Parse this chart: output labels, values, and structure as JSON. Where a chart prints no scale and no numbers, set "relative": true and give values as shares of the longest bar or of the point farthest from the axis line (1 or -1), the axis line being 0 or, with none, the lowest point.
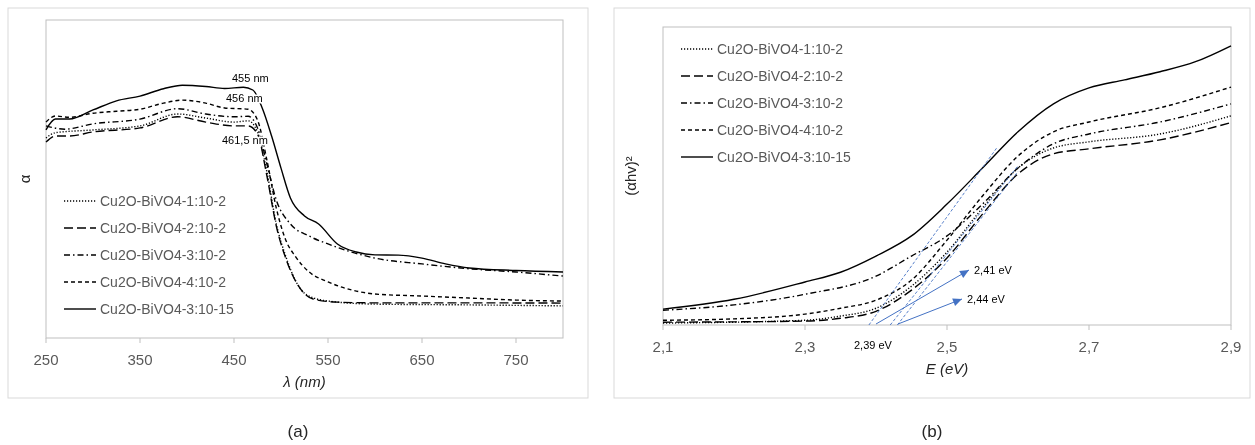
{
  "chart_data": [
    {
      "type": "line",
      "relative": true,
      "xlabel": "λ (nm)",
      "ylabel": "α",
      "xlim": [
        250,
        800
      ],
      "xticks": [
        250,
        350,
        450,
        550,
        650,
        750
      ],
      "legend": "bottom left",
      "grid": false,
      "annotations": [
        "455 nm",
        "456 nm",
        "461,5 nm",
        "(a)"
      ],
      "series": [
        {
          "name": "Cu2O-BiVO4-1:10-2",
          "color": "#000000",
          "line_style": "dotted",
          "x": [
            250,
            260,
            300,
            350,
            390,
            420,
            450,
            465,
            475,
            485,
            495,
            505,
            520,
            535,
            560,
            600,
            700,
            800
          ],
          "values": [
            0.791,
            0.812,
            0.823,
            0.839,
            0.886,
            0.87,
            0.854,
            0.859,
            0.815,
            0.657,
            0.451,
            0.324,
            0.198,
            0.158,
            0.142,
            0.134,
            0.131,
            0.127
          ]
        },
        {
          "name": "Cu2O-BiVO4-2:10-2",
          "color": "#000000",
          "line_style": "longdash",
          "x": [
            250,
            260,
            275,
            300,
            350,
            390,
            420,
            450,
            465,
            475,
            485,
            495,
            505,
            520,
            535,
            560,
            600,
            700,
            800
          ],
          "values": [
            0.775,
            0.799,
            0.799,
            0.815,
            0.831,
            0.875,
            0.854,
            0.839,
            0.839,
            0.807,
            0.641,
            0.443,
            0.316,
            0.198,
            0.153,
            0.142,
            0.139,
            0.139,
            0.138
          ]
        },
        {
          "name": "Cu2O-BiVO4-3:10-2",
          "color": "#000000",
          "line_style": "dashdot",
          "x": [
            250,
            270,
            300,
            350,
            390,
            420,
            450,
            465,
            475,
            485,
            495,
            510,
            530,
            550,
            575,
            600,
            650,
            700,
            750,
            800
          ],
          "values": [
            0.839,
            0.826,
            0.847,
            0.866,
            0.907,
            0.886,
            0.875,
            0.877,
            0.831,
            0.688,
            0.546,
            0.451,
            0.403,
            0.372,
            0.34,
            0.316,
            0.293,
            0.274,
            0.261,
            0.245
          ]
        },
        {
          "name": "Cu2O-BiVO4-4:10-2",
          "color": "#000000",
          "line_style": "dashed",
          "x": [
            250,
            260,
            275,
            300,
            325,
            350,
            375,
            395,
            420,
            440,
            465,
            475,
            485,
            495,
            505,
            515,
            530,
            550,
            575,
            600,
            650,
            700,
            750,
            800
          ],
          "values": [
            0.854,
            0.878,
            0.873,
            0.889,
            0.897,
            0.905,
            0.929,
            0.941,
            0.929,
            0.91,
            0.905,
            0.862,
            0.704,
            0.514,
            0.388,
            0.324,
            0.261,
            0.222,
            0.19,
            0.174,
            0.166,
            0.158,
            0.15,
            0.146
          ]
        },
        {
          "name": "Cu2O-BiVO4-3:10-15",
          "color": "#000000",
          "line_style": "solid",
          "x": [
            250,
            260,
            275,
            300,
            325,
            350,
            375,
            395,
            420,
            440,
            460,
            470,
            480,
            490,
            500,
            510,
            525,
            540,
            560,
            580,
            600,
            625,
            650,
            675,
            700,
            750,
            800
          ],
          "values": [
            0.823,
            0.866,
            0.866,
            0.902,
            0.938,
            0.957,
            0.986,
            1,
            0.995,
            0.987,
            0.992,
            0.981,
            0.91,
            0.799,
            0.672,
            0.554,
            0.483,
            0.451,
            0.372,
            0.34,
            0.329,
            0.328,
            0.316,
            0.293,
            0.277,
            0.267,
            0.261
          ]
        }
      ]
    },
    {
      "type": "line",
      "relative": true,
      "xlabel": "E (eV)",
      "ylabel": "(αhv)²",
      "xlim": [
        2.1,
        2.9
      ],
      "xticks": [
        {
          "value": 2.1,
          "label": "2,1"
        },
        {
          "value": 2.3,
          "label": "2,3"
        },
        {
          "value": 2.5,
          "label": "2,5"
        },
        {
          "value": 2.7,
          "label": "2,7"
        },
        {
          "value": 2.9,
          "label": "2,9"
        }
      ],
      "legend": "top left",
      "grid": false,
      "annotations": [
        "2,41 eV",
        "2,44 eV",
        "2,39 eV",
        "(b)"
      ],
      "series": [
        {
          "name": "Cu2O-BiVO4-1:10-2",
          "color": "#000000",
          "line_style": "dotted",
          "x": [
            2.1,
            2.3,
            2.35,
            2.4,
            2.45,
            2.5,
            2.55,
            2.6,
            2.65,
            2.7,
            2.8,
            2.9
          ],
          "values": [
            0.007,
            0.017,
            0.032,
            0.06,
            0.139,
            0.261,
            0.419,
            0.562,
            0.634,
            0.656,
            0.684,
            0.749
          ]
        },
        {
          "name": "Cu2O-BiVO4-2:10-2",
          "color": "#000000",
          "line_style": "longdash",
          "x": [
            2.1,
            2.3,
            2.35,
            2.4,
            2.45,
            2.5,
            2.55,
            2.6,
            2.65,
            2.7,
            2.8,
            2.9
          ],
          "values": [
            0.01,
            0.014,
            0.024,
            0.049,
            0.125,
            0.24,
            0.397,
            0.541,
            0.613,
            0.631,
            0.663,
            0.725
          ]
        },
        {
          "name": "Cu2O-BiVO4-3:10-2",
          "color": "#000000",
          "line_style": "dashdot",
          "x": [
            2.1,
            2.2,
            2.3,
            2.4,
            2.45,
            2.5,
            2.55,
            2.6,
            2.65,
            2.7,
            2.8,
            2.9
          ],
          "values": [
            0.053,
            0.072,
            0.11,
            0.175,
            0.247,
            0.319,
            0.433,
            0.562,
            0.649,
            0.684,
            0.727,
            0.792
          ]
        },
        {
          "name": "Cu2O-BiVO4-4:10-2",
          "color": "#000000",
          "line_style": "dashed",
          "x": [
            2.1,
            2.2,
            2.3,
            2.35,
            2.4,
            2.45,
            2.5,
            2.55,
            2.6,
            2.65,
            2.7,
            2.8,
            2.9
          ],
          "values": [
            0.017,
            0.022,
            0.039,
            0.06,
            0.089,
            0.161,
            0.304,
            0.462,
            0.605,
            0.692,
            0.727,
            0.778,
            0.852
          ]
        },
        {
          "name": "Cu2O-BiVO4-3:10-15",
          "color": "#000000",
          "line_style": "solid",
          "x": [
            2.1,
            2.2,
            2.3,
            2.35,
            2.4,
            2.45,
            2.5,
            2.55,
            2.6,
            2.65,
            2.7,
            2.75,
            2.8,
            2.85,
            2.9
          ],
          "values": [
            0.057,
            0.092,
            0.154,
            0.189,
            0.247,
            0.319,
            0.433,
            0.562,
            0.692,
            0.792,
            0.849,
            0.878,
            0.907,
            0.943,
            1
          ]
        },
        {
          "color": "#4472c4",
          "line_style": "shortdash",
          "x": [
            2.39,
            2.57
          ],
          "values": [
            0,
            0.634
          ]
        },
        {
          "color": "#4472c4",
          "line_style": "shortdash",
          "x": [
            2.42,
            2.6
          ],
          "values": [
            0,
            0.57
          ]
        },
        {
          "color": "#4472c4",
          "line_style": "shortdash",
          "x": [
            2.43,
            2.6
          ],
          "values": [
            0,
            0.55
          ]
        }
      ]
    }
  ]
}
